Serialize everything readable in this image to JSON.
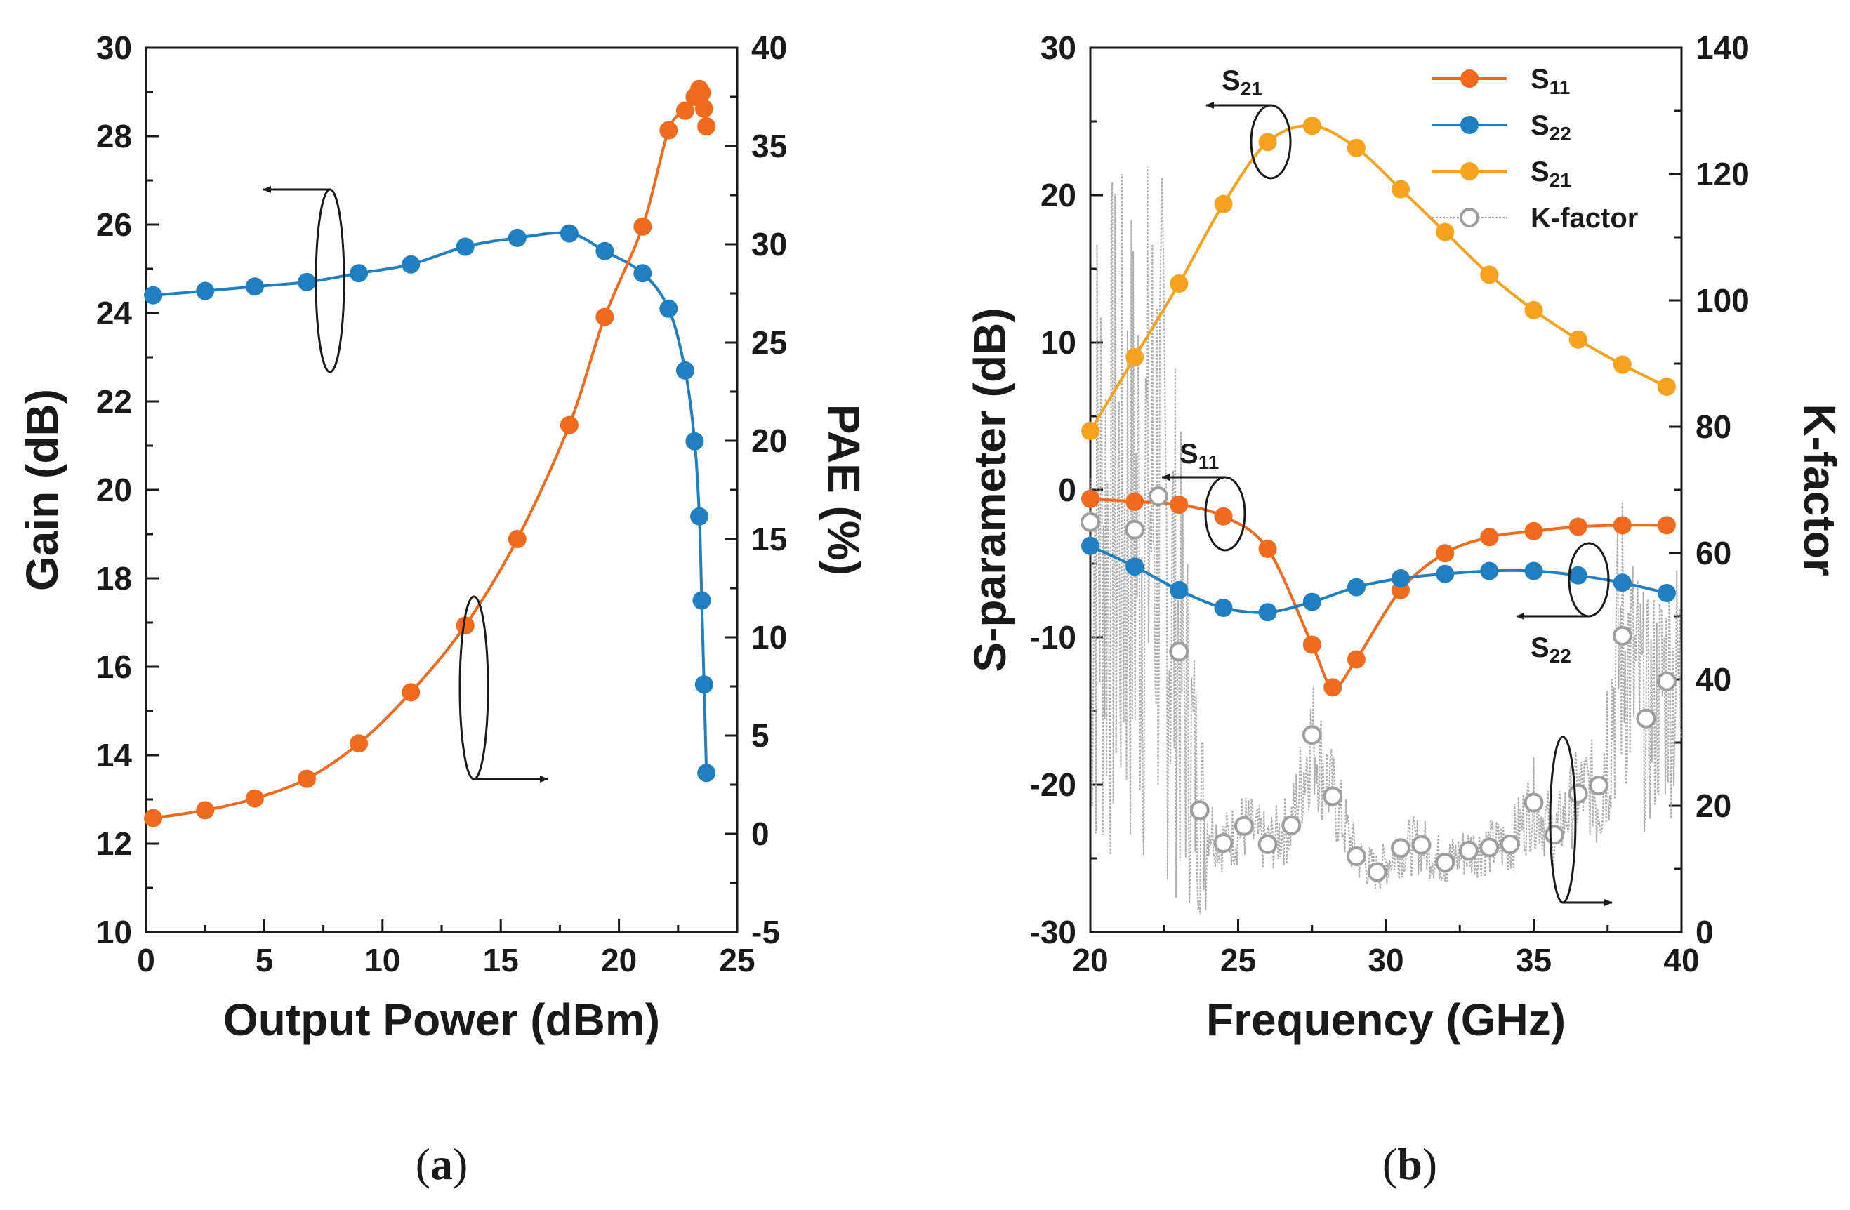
{
  "captions": {
    "a_open": "(",
    "a_letter": "a",
    "a_close": ")",
    "b_open": "(",
    "b_letter": "b",
    "b_close": ")"
  },
  "chart_data": [
    {
      "id": "a",
      "type": "line",
      "xlabel": "Output Power (dBm)",
      "ylabel": "Gain (dB)",
      "y2label": "PAE (%)",
      "xlim": [
        0,
        25
      ],
      "ylim": [
        10,
        30
      ],
      "y2lim": [
        -5,
        40
      ],
      "xticks": [
        0,
        5,
        10,
        15,
        20,
        25
      ],
      "yticks": [
        10,
        12,
        14,
        16,
        18,
        20,
        22,
        24,
        26,
        28,
        30
      ],
      "y2ticks": [
        -5,
        0,
        5,
        10,
        15,
        20,
        25,
        30,
        35,
        40
      ],
      "grid": false,
      "legend": "none",
      "colors": {
        "gain": "#1f7fc0",
        "pae": "#f06a1e",
        "axis": "#1a1a1a"
      },
      "series": [
        {
          "axis": "left",
          "x": [
            0.3,
            2.5,
            4.6,
            6.8,
            9.0,
            11.2,
            13.5,
            15.7,
            17.9,
            19.4,
            21.0,
            22.1,
            22.8,
            23.2,
            23.4,
            23.5,
            23.6,
            23.7
          ],
          "y": [
            24.4,
            24.5,
            24.6,
            24.7,
            24.9,
            25.1,
            25.5,
            25.7,
            25.8,
            25.4,
            24.9,
            24.1,
            22.7,
            21.1,
            19.4,
            17.5,
            15.6,
            13.6
          ]
        },
        {
          "axis": "right",
          "x": [
            0.3,
            2.5,
            4.6,
            6.8,
            9.0,
            11.2,
            13.5,
            15.7,
            17.9,
            19.4,
            21.0,
            22.1,
            22.8,
            23.2,
            23.4,
            23.5,
            23.6,
            23.7
          ],
          "y": [
            0.8,
            1.2,
            1.8,
            2.8,
            4.6,
            7.2,
            10.6,
            15.0,
            20.8,
            26.3,
            30.9,
            35.8,
            36.8,
            37.5,
            37.9,
            37.7,
            36.9,
            36.0
          ]
        }
      ],
      "annotations": [
        {
          "kind": "ellipse-arrow",
          "target": "left",
          "text": ""
        },
        {
          "kind": "ellipse-arrow",
          "target": "right",
          "text": ""
        }
      ]
    },
    {
      "id": "b",
      "type": "line",
      "xlabel": "Frequency (GHz)",
      "ylabel": "S-parameter (dB)",
      "y2label": "K-factor",
      "xlim": [
        20,
        40
      ],
      "ylim": [
        -30,
        30
      ],
      "y2lim": [
        0,
        140
      ],
      "xticks": [
        20,
        25,
        30,
        35,
        40
      ],
      "yticks": [
        -30,
        -20,
        -10,
        0,
        10,
        20,
        30
      ],
      "y2ticks": [
        0,
        20,
        40,
        60,
        80,
        100,
        120,
        140
      ],
      "grid": false,
      "legend": "top-right",
      "colors": {
        "s11": "#f06a1e",
        "s22": "#1f7fc0",
        "s21": "#f6a21e",
        "k": "#9e9e9e",
        "axis": "#1a1a1a"
      },
      "series": [
        {
          "name": "S11",
          "axis": "left",
          "x": [
            20,
            21.5,
            23,
            24.5,
            26,
            27.5,
            28.2,
            29,
            30.5,
            32,
            33.5,
            35,
            36.5,
            38,
            39.5
          ],
          "y": [
            -0.6,
            -0.8,
            -1.0,
            -1.8,
            -4.0,
            -10.5,
            -13.4,
            -11.5,
            -6.8,
            -4.3,
            -3.2,
            -2.8,
            -2.5,
            -2.4,
            -2.4
          ]
        },
        {
          "name": "S22",
          "axis": "left",
          "x": [
            20,
            21.5,
            23,
            24.5,
            26,
            27.5,
            29,
            30.5,
            32,
            33.5,
            35,
            36.5,
            38,
            39.5
          ],
          "y": [
            -3.8,
            -5.2,
            -6.8,
            -8.0,
            -8.3,
            -7.6,
            -6.6,
            -6.0,
            -5.7,
            -5.5,
            -5.5,
            -5.8,
            -6.3,
            -7.0
          ]
        },
        {
          "name": "S21",
          "axis": "left",
          "x": [
            20,
            21.5,
            23,
            24.5,
            26,
            27.5,
            29,
            30.5,
            32,
            33.5,
            35,
            36.5,
            38,
            39.5
          ],
          "y": [
            4.0,
            9.0,
            14.0,
            19.4,
            23.6,
            24.7,
            23.2,
            20.4,
            17.5,
            14.6,
            12.2,
            10.2,
            8.5,
            7.0
          ]
        },
        {
          "name": "K-factor",
          "axis": "right",
          "x": [
            20,
            21.5,
            22.3,
            23,
            23.7,
            24.5,
            25.2,
            26,
            26.8,
            27.5,
            28.2,
            29,
            29.7,
            30.5,
            31.2,
            32,
            32.8,
            33.5,
            34.2,
            35,
            35.7,
            36.5,
            37.2,
            38,
            38.8,
            39.5
          ],
          "y": [
            64.9,
            63.7,
            69.0,
            44.4,
            19.3,
            14.1,
            16.8,
            13.9,
            16.9,
            31.2,
            21.5,
            12.0,
            9.5,
            13.3,
            13.8,
            11.0,
            12.9,
            13.4,
            13.9,
            20.5,
            15.4,
            21.9,
            23.2,
            46.9,
            33.8,
            39.7
          ]
        }
      ],
      "annotations": [
        {
          "kind": "ellipse-arrow",
          "target": "S21",
          "text": "S21"
        },
        {
          "kind": "ellipse-arrow",
          "target": "S11",
          "text": "S11"
        },
        {
          "kind": "ellipse-arrow",
          "target": "S22",
          "text": "S22"
        },
        {
          "kind": "ellipse-arrow",
          "target": "K-factor",
          "text": ""
        }
      ]
    }
  ]
}
